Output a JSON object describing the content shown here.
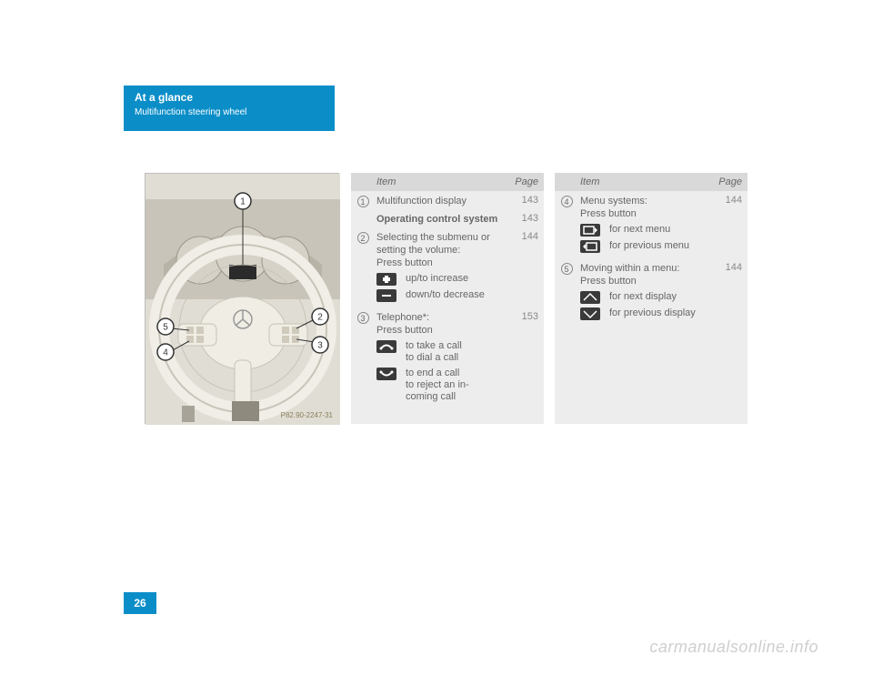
{
  "header": {
    "tab_line1": "At a glance",
    "tab_line2": "Multifunction steering wheel"
  },
  "image": {
    "code": "P82.90-2247-31",
    "callouts": [
      "1",
      "2",
      "3",
      "4",
      "5"
    ]
  },
  "table_headers": {
    "item": "Item",
    "page": "Page"
  },
  "table1": [
    {
      "num": "1",
      "text": "Multifunction display",
      "bold": false,
      "page": "143"
    },
    {
      "num": "",
      "text": "Operating control system",
      "bold": true,
      "page": "143"
    },
    {
      "num": "2",
      "text": "Selecting the submenu or setting the volume:\nPress button",
      "bold": false,
      "page": "144",
      "subs": [
        {
          "glyph": "plus",
          "text": "up/to increase"
        },
        {
          "glyph": "minus",
          "text": "down/to decrease"
        }
      ]
    },
    {
      "num": "3",
      "text": "Telephone*:\nPress button",
      "bold": false,
      "page": "153",
      "subs": [
        {
          "glyph": "phone-up",
          "text": "to take a call\nto dial a call"
        },
        {
          "glyph": "phone-down",
          "text": "to end a call\nto reject an in-\ncoming call"
        }
      ]
    }
  ],
  "table2": [
    {
      "num": "4",
      "text": "Menu systems:\nPress button",
      "bold": false,
      "page": "144",
      "subs": [
        {
          "glyph": "screen-next",
          "text": "for next menu"
        },
        {
          "glyph": "screen-prev",
          "text": "for previous menu"
        }
      ]
    },
    {
      "num": "5",
      "text": "Moving within a menu:\nPress button",
      "bold": false,
      "page": "144",
      "subs": [
        {
          "glyph": "page-up",
          "text": "for next display"
        },
        {
          "glyph": "page-down",
          "text": "for previous display"
        }
      ]
    }
  ],
  "page_number": "26",
  "watermark": "carmanualsonline.info",
  "colors": {
    "accent": "#0b8ec8",
    "thead_bg": "#d9d9d9",
    "tbody_bg": "#ededed",
    "text": "#666666",
    "page_gray": "#888888"
  }
}
